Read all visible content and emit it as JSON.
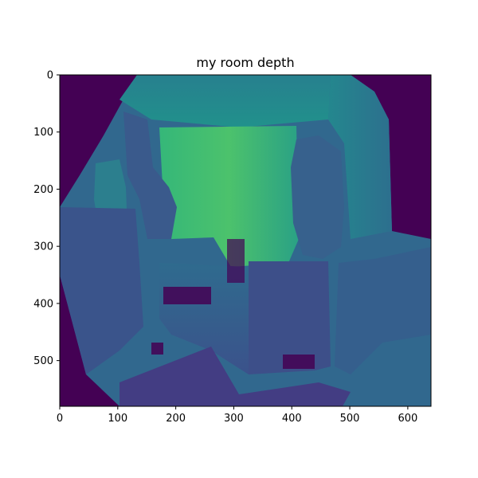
{
  "chart_data": {
    "type": "heatmap",
    "title": "my room depth",
    "xlabel": "",
    "ylabel": "",
    "colormap": "viridis",
    "xlim": [
      0,
      640
    ],
    "ylim": [
      580,
      0
    ],
    "x_ticks": [
      0,
      100,
      200,
      300,
      400,
      500,
      600
    ],
    "y_ticks": [
      0,
      100,
      200,
      300,
      400,
      500
    ],
    "grid": false,
    "legend": "none",
    "regions_description": "depth image of a room; dark purple border region outside lens field of view, bright green back wall near center, blue/teal furniture and objects in foreground",
    "colors": {
      "background_dark": "#440154",
      "deep_blue": "#3b528b",
      "mid_blue": "#31688e",
      "teal": "#21918c",
      "green": "#35b779",
      "bright_green": "#5ec962"
    }
  }
}
